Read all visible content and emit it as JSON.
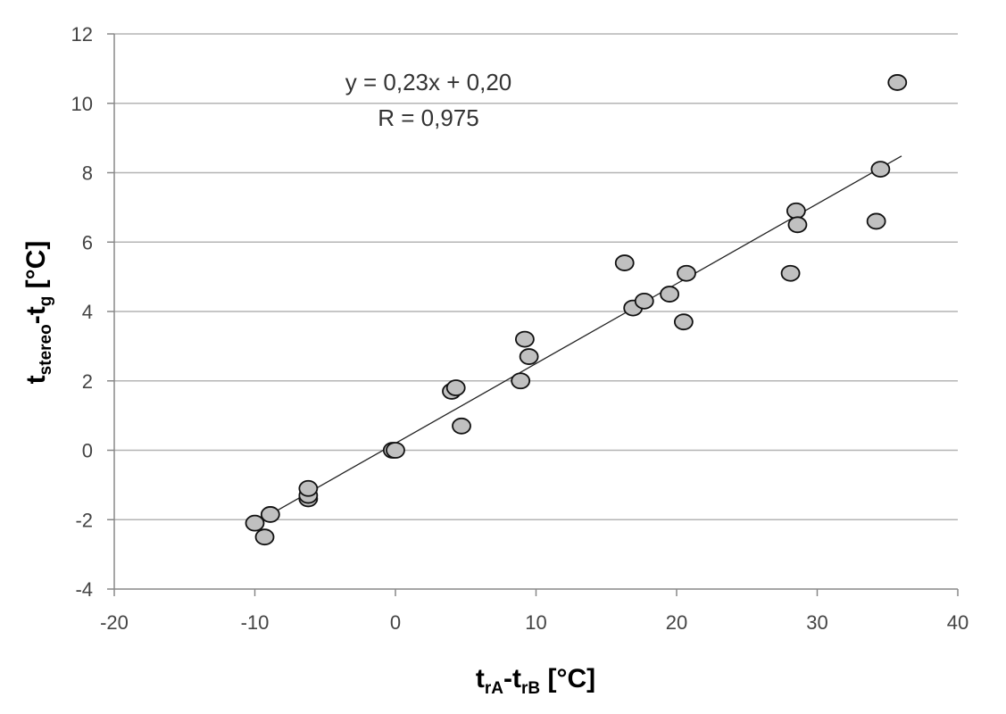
{
  "chart_data": {
    "type": "scatter",
    "x_axis": {
      "label_main_1": "t",
      "label_sub_1": "rA",
      "label_sep": "-",
      "label_main_2": "t",
      "label_sub_2": "rB",
      "label_unit": " [°C]",
      "range": [
        -20,
        40
      ],
      "ticks": [
        -20,
        -10,
        0,
        10,
        20,
        30,
        40
      ],
      "tick_labels": [
        "-20",
        "-10",
        "0",
        "10",
        "20",
        "30",
        "40"
      ]
    },
    "y_axis": {
      "label_main_1": "t",
      "label_sub_1": "stereo",
      "label_sep": "-",
      "label_main_2": "t",
      "label_sub_2": "g",
      "label_unit": " [°C]",
      "range": [
        -4,
        12
      ],
      "ticks": [
        -4,
        -2,
        0,
        2,
        4,
        6,
        8,
        10,
        12
      ],
      "tick_labels": [
        "-4",
        "-2",
        "0",
        "2",
        "4",
        "6",
        "8",
        "10",
        "12"
      ]
    },
    "grid": "horizontal",
    "equation_text": "y = 0,23x + 0,20",
    "r_text": "R = 0,975",
    "trendline": {
      "slope": 0.23,
      "intercept": 0.2,
      "x_range": [
        -10,
        36
      ]
    },
    "marker_color": "#c0c0c0",
    "points": [
      {
        "x": -10.0,
        "y": -2.1
      },
      {
        "x": -9.3,
        "y": -2.5
      },
      {
        "x": -8.9,
        "y": -1.85
      },
      {
        "x": -6.2,
        "y": -1.4
      },
      {
        "x": -6.2,
        "y": -1.3
      },
      {
        "x": -6.2,
        "y": -1.1
      },
      {
        "x": -0.2,
        "y": 0.0
      },
      {
        "x": 0.0,
        "y": 0.0
      },
      {
        "x": 4.0,
        "y": 1.7
      },
      {
        "x": 4.3,
        "y": 1.8
      },
      {
        "x": 4.7,
        "y": 0.7
      },
      {
        "x": 8.9,
        "y": 2.0
      },
      {
        "x": 9.2,
        "y": 3.2
      },
      {
        "x": 9.5,
        "y": 2.7
      },
      {
        "x": 16.3,
        "y": 5.4
      },
      {
        "x": 16.9,
        "y": 4.1
      },
      {
        "x": 17.7,
        "y": 4.3
      },
      {
        "x": 19.5,
        "y": 4.5
      },
      {
        "x": 20.5,
        "y": 3.7
      },
      {
        "x": 20.7,
        "y": 5.1
      },
      {
        "x": 28.1,
        "y": 5.1
      },
      {
        "x": 28.5,
        "y": 6.9
      },
      {
        "x": 28.6,
        "y": 6.5
      },
      {
        "x": 34.2,
        "y": 6.6
      },
      {
        "x": 34.5,
        "y": 8.1
      },
      {
        "x": 35.7,
        "y": 10.6
      }
    ]
  }
}
